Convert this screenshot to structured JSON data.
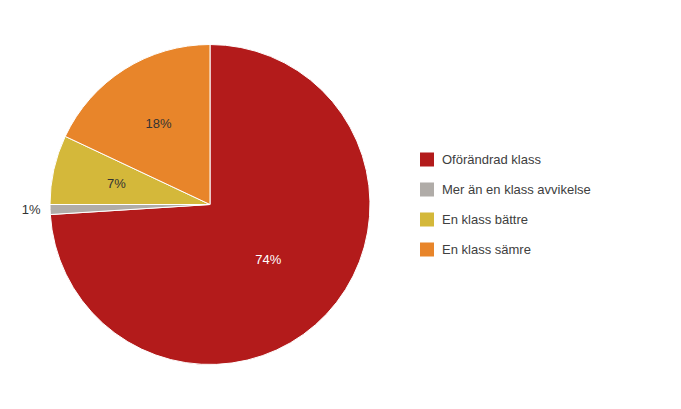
{
  "chart_data": {
    "type": "pie",
    "categories": [
      "Oförändrad klass",
      "Mer än en klass avvikelse",
      "En klass bättre",
      "En klass sämre"
    ],
    "values": [
      74,
      1,
      7,
      18
    ],
    "value_labels": [
      "74%",
      "1%",
      "7%",
      "18%"
    ],
    "colors": [
      "#b31b1b",
      "#b0aca8",
      "#d4b83a",
      "#e8852a"
    ],
    "data_labels": true,
    "legend": "right"
  }
}
